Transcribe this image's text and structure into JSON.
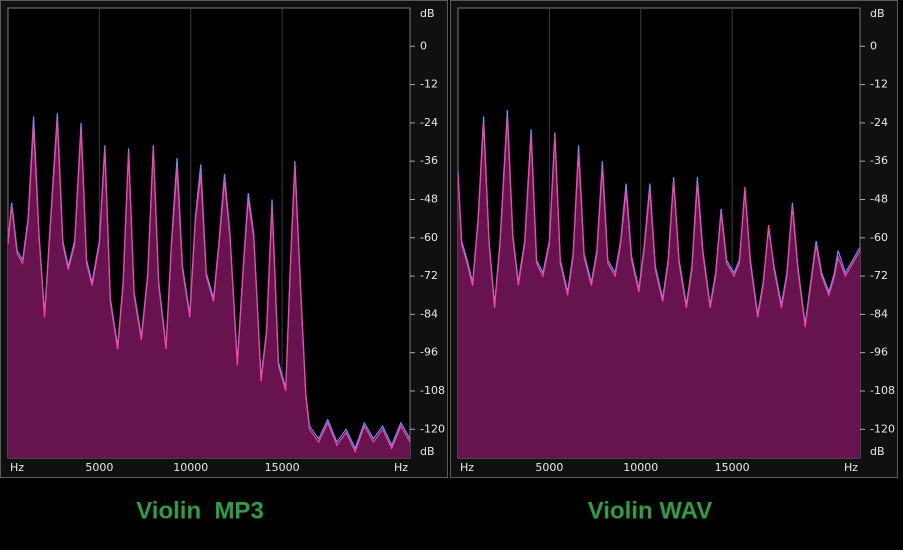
{
  "chart_data": [
    {
      "type": "area",
      "title": "Violin  MP3",
      "x_unit": "Hz",
      "y_unit": "dB",
      "x": [
        0,
        200,
        500,
        800,
        1100,
        1400,
        1700,
        2000,
        2300,
        2700,
        3000,
        3300,
        3650,
        4000,
        4300,
        4600,
        5000,
        5300,
        5600,
        6000,
        6300,
        6600,
        6900,
        7300,
        7650,
        7950,
        8250,
        8650,
        8950,
        9250,
        9550,
        9950,
        10250,
        10550,
        10850,
        11250,
        11550,
        11850,
        12150,
        12550,
        12850,
        13150,
        13450,
        13850,
        14150,
        14450,
        14800,
        15200,
        15450,
        15700,
        16000,
        16300,
        16500,
        17000,
        17500,
        18000,
        18500,
        19000,
        19500,
        20000,
        20500,
        21000,
        21500,
        22000
      ],
      "xlim": [
        0,
        22000
      ],
      "xticks": [
        5000,
        10000,
        15000
      ],
      "ylim": [
        -129,
        12
      ],
      "yticks": [
        0,
        -12,
        -24,
        -36,
        -48,
        -60,
        -72,
        -84,
        -96,
        -108,
        -120
      ],
      "grid": true,
      "series": [
        {
          "color": "#5a9cff",
          "values": [
            -61,
            -49,
            -64,
            -67,
            -54,
            -22,
            -59,
            -84,
            -57,
            -21,
            -61,
            -69,
            -61,
            -24,
            -67,
            -74,
            -61,
            -31,
            -79,
            -94,
            -74,
            -32,
            -77,
            -91,
            -71,
            -31,
            -74,
            -94,
            -61,
            -35,
            -69,
            -84,
            -54,
            -37,
            -71,
            -79,
            -61,
            -40,
            -59,
            -99,
            -71,
            -46,
            -59,
            -104,
            -89,
            -48,
            -99,
            -107,
            -69,
            -36,
            -74,
            -109,
            -119,
            -123,
            -117,
            -124,
            -120,
            -126,
            -118,
            -123,
            -119,
            -125,
            -118,
            -123
          ]
        },
        {
          "color": "#ff3fa8",
          "fill": "#66134e",
          "values": [
            -62,
            -50,
            -65,
            -68,
            -55,
            -25,
            -60,
            -85,
            -58,
            -23,
            -62,
            -70,
            -62,
            -26,
            -68,
            -75,
            -62,
            -32,
            -80,
            -95,
            -75,
            -33,
            -78,
            -92,
            -72,
            -32,
            -75,
            -95,
            -62,
            -38,
            -70,
            -85,
            -55,
            -40,
            -72,
            -80,
            -62,
            -42,
            -60,
            -100,
            -72,
            -48,
            -60,
            -105,
            -90,
            -50,
            -100,
            -108,
            -70,
            -37,
            -75,
            -110,
            -120,
            -124,
            -118,
            -125,
            -121,
            -127,
            -119,
            -124,
            -120,
            -126,
            -119,
            -124
          ]
        }
      ]
    },
    {
      "type": "area",
      "title": "Violin WAV",
      "x_unit": "Hz",
      "y_unit": "dB",
      "x": [
        0,
        200,
        500,
        800,
        1100,
        1400,
        1700,
        2000,
        2300,
        2700,
        3000,
        3300,
        3650,
        4000,
        4300,
        4650,
        5000,
        5300,
        5600,
        6000,
        6300,
        6600,
        6900,
        7300,
        7600,
        7900,
        8200,
        8600,
        8900,
        9200,
        9500,
        9900,
        10200,
        10500,
        10800,
        11200,
        11500,
        11800,
        12100,
        12500,
        12800,
        13100,
        13400,
        13800,
        14100,
        14400,
        14700,
        15100,
        15400,
        15700,
        16000,
        16400,
        16700,
        17000,
        17300,
        17700,
        18000,
        18300,
        18600,
        19000,
        19300,
        19600,
        19900,
        20300,
        20600,
        20800,
        21200,
        21600,
        22000
      ],
      "xlim": [
        0,
        22000
      ],
      "xticks": [
        5000,
        10000,
        15000
      ],
      "ylim": [
        -129,
        12
      ],
      "yticks": [
        0,
        -12,
        -24,
        -36,
        -48,
        -60,
        -72,
        -84,
        -96,
        -108,
        -120
      ],
      "grid": true,
      "series": [
        {
          "color": "#5a9cff",
          "values": [
            -39,
            -61,
            -67,
            -74,
            -54,
            -22,
            -61,
            -81,
            -61,
            -20,
            -59,
            -74,
            -61,
            -26,
            -67,
            -71,
            -61,
            -27,
            -67,
            -77,
            -65,
            -31,
            -65,
            -74,
            -64,
            -36,
            -67,
            -71,
            -61,
            -43,
            -66,
            -76,
            -62,
            -43,
            -69,
            -79,
            -67,
            -41,
            -67,
            -81,
            -69,
            -41,
            -64,
            -81,
            -71,
            -51,
            -67,
            -71,
            -67,
            -45,
            -67,
            -84,
            -74,
            -57,
            -69,
            -81,
            -71,
            -49,
            -69,
            -87,
            -74,
            -61,
            -71,
            -77,
            -71,
            -64,
            -71,
            -67,
            -63
          ]
        },
        {
          "color": "#ff3fa8",
          "fill": "#66134e",
          "values": [
            -40,
            -62,
            -68,
            -75,
            -55,
            -24,
            -62,
            -82,
            -62,
            -22,
            -60,
            -75,
            -62,
            -28,
            -68,
            -72,
            -62,
            -28,
            -68,
            -78,
            -66,
            -33,
            -66,
            -75,
            -65,
            -38,
            -68,
            -72,
            -62,
            -45,
            -67,
            -77,
            -63,
            -45,
            -70,
            -80,
            -68,
            -42,
            -68,
            -82,
            -70,
            -43,
            -65,
            -82,
            -72,
            -52,
            -68,
            -72,
            -68,
            -44,
            -68,
            -85,
            -75,
            -56,
            -70,
            -82,
            -72,
            -50,
            -70,
            -88,
            -75,
            -62,
            -72,
            -78,
            -72,
            -66,
            -72,
            -68,
            -64
          ]
        }
      ]
    }
  ]
}
